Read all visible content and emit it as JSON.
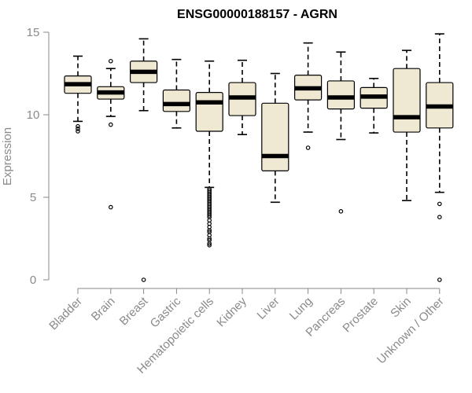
{
  "chart_data": {
    "type": "boxplot",
    "title": "ENSG00000188157 - AGRN",
    "xlabel": "",
    "ylabel": "Expression",
    "ylim": [
      0,
      15
    ],
    "yticks": [
      "0",
      "5",
      "10",
      "15"
    ],
    "grid": false,
    "colors": {
      "box_fill": "#efe8d2",
      "box_stroke": "#000000",
      "axis": "#8a8a8a"
    },
    "categories": [
      "Bladder",
      "Brain",
      "Breast",
      "Gastric",
      "Hematopoietic cells",
      "Kidney",
      "Liver",
      "Lung",
      "Pancreas",
      "Prostate",
      "Skin",
      "Unknown / Other"
    ],
    "boxes": [
      {
        "category": "Bladder",
        "whisker_low": 9.6,
        "q1": 11.3,
        "median": 11.85,
        "q3": 12.35,
        "whisker_high": 13.55,
        "outliers": [
          9.3,
          9.15,
          9.0
        ]
      },
      {
        "category": "Brain",
        "whisker_low": 9.9,
        "q1": 10.95,
        "median": 11.35,
        "q3": 11.7,
        "whisker_high": 12.8,
        "outliers": [
          13.25,
          9.4,
          4.4
        ]
      },
      {
        "category": "Breast",
        "whisker_low": 10.25,
        "q1": 11.95,
        "median": 12.6,
        "q3": 13.25,
        "whisker_high": 14.6,
        "outliers": [
          0.0
        ]
      },
      {
        "category": "Gastric",
        "whisker_low": 9.2,
        "q1": 10.2,
        "median": 10.65,
        "q3": 11.5,
        "whisker_high": 13.35,
        "outliers": []
      },
      {
        "category": "Hematopoietic cells",
        "whisker_low": 5.6,
        "q1": 9.0,
        "median": 10.75,
        "q3": 11.35,
        "whisker_high": 13.25,
        "outliers": [
          5.5,
          5.4,
          5.3,
          5.2,
          5.1,
          5.0,
          4.9,
          4.8,
          4.7,
          4.6,
          4.5,
          4.4,
          4.3,
          4.2,
          4.1,
          4.0,
          3.9,
          3.8,
          3.6,
          3.4,
          3.2,
          3.0,
          2.9,
          2.7,
          2.5,
          2.4,
          2.2,
          2.1
        ]
      },
      {
        "category": "Kidney",
        "whisker_low": 8.8,
        "q1": 9.95,
        "median": 11.05,
        "q3": 11.95,
        "whisker_high": 13.3,
        "outliers": []
      },
      {
        "category": "Liver",
        "whisker_low": 4.7,
        "q1": 6.6,
        "median": 7.5,
        "q3": 10.7,
        "whisker_high": 12.5,
        "outliers": []
      },
      {
        "category": "Lung",
        "whisker_low": 8.95,
        "q1": 10.9,
        "median": 11.6,
        "q3": 12.4,
        "whisker_high": 14.35,
        "outliers": [
          8.0
        ]
      },
      {
        "category": "Pancreas",
        "whisker_low": 8.5,
        "q1": 10.35,
        "median": 11.05,
        "q3": 12.05,
        "whisker_high": 13.8,
        "outliers": [
          4.15
        ]
      },
      {
        "category": "Prostate",
        "whisker_low": 8.9,
        "q1": 10.4,
        "median": 11.1,
        "q3": 11.65,
        "whisker_high": 12.2,
        "outliers": []
      },
      {
        "category": "Skin",
        "whisker_low": 4.8,
        "q1": 8.95,
        "median": 9.85,
        "q3": 12.8,
        "whisker_high": 13.9,
        "outliers": []
      },
      {
        "category": "Unknown / Other",
        "whisker_low": 5.3,
        "q1": 9.2,
        "median": 10.5,
        "q3": 11.95,
        "whisker_high": 14.9,
        "outliers": [
          4.6,
          3.8,
          0.0
        ]
      }
    ]
  }
}
